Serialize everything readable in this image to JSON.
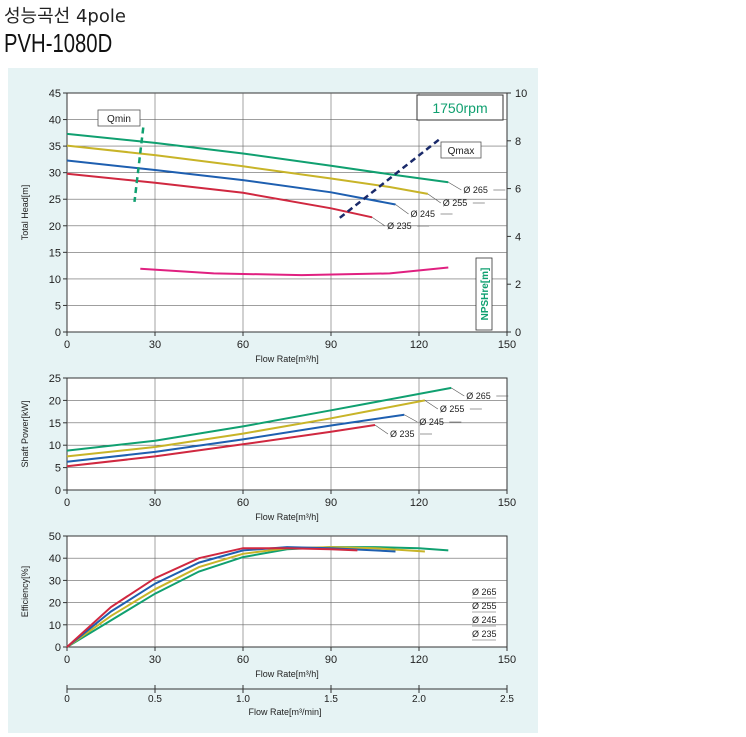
{
  "header": {
    "subtitle": "성능곡선 4pole",
    "model": "PVH-1080D"
  },
  "chart_data": [
    {
      "id": "head",
      "type": "line",
      "ylabel": "Total Head[m]",
      "xlabel": "Flow Rate[m³/h]",
      "xlim": [
        0,
        150
      ],
      "ylim": [
        0,
        45
      ],
      "xticks": [
        0,
        30,
        60,
        90,
        120,
        150
      ],
      "yticks": [
        0,
        5,
        10,
        15,
        20,
        25,
        30,
        35,
        40,
        45
      ],
      "y2label": "NPSHre[m]",
      "y2lim": [
        0,
        10
      ],
      "y2ticks": [
        0,
        2,
        4,
        6,
        8,
        10
      ],
      "rpm_label": "1750rpm",
      "qmin_label": "Qmin",
      "qmax_label": "Qmax",
      "series": [
        {
          "name": "Ø 265",
          "color": "#10a070",
          "x": [
            0,
            30,
            60,
            90,
            110,
            130
          ],
          "y": [
            37.3,
            35.6,
            33.6,
            31.3,
            29.7,
            28.2
          ]
        },
        {
          "name": "Ø 255",
          "color": "#c8b428",
          "x": [
            0,
            30,
            60,
            90,
            110,
            123
          ],
          "y": [
            35.1,
            33.3,
            31.2,
            28.9,
            27.3,
            26.0
          ]
        },
        {
          "name": "Ø 245",
          "color": "#1e5fb0",
          "x": [
            0,
            30,
            60,
            90,
            112
          ],
          "y": [
            32.3,
            30.5,
            28.6,
            26.3,
            24.0
          ]
        },
        {
          "name": "Ø 235",
          "color": "#d02840",
          "x": [
            0,
            30,
            60,
            90,
            104
          ],
          "y": [
            29.8,
            28.1,
            26.2,
            23.3,
            21.6
          ]
        }
      ],
      "npsh": {
        "name": "NPSHre",
        "color": "#e02080",
        "x": [
          25,
          50,
          80,
          110,
          130
        ],
        "y": [
          2.65,
          2.45,
          2.38,
          2.45,
          2.7
        ]
      },
      "qmin_line": {
        "color": "#10a070",
        "x": [
          26,
          23
        ],
        "y": [
          38.5,
          24.5
        ]
      },
      "qmax_line": {
        "color": "#1a2a6a",
        "x": [
          93,
          127
        ],
        "y": [
          21.5,
          36.3
        ]
      }
    },
    {
      "id": "power",
      "type": "line",
      "ylabel": "Shaft Power[kW]",
      "xlabel": "Flow Rate[m³/h]",
      "xlim": [
        0,
        150
      ],
      "ylim": [
        0,
        25
      ],
      "xticks": [
        0,
        30,
        60,
        90,
        120,
        150
      ],
      "yticks": [
        0,
        5,
        10,
        15,
        20,
        25
      ],
      "series": [
        {
          "name": "Ø 265",
          "color": "#10a070",
          "x": [
            0,
            30,
            60,
            90,
            131
          ],
          "y": [
            8.8,
            11.0,
            14.2,
            17.8,
            22.8
          ]
        },
        {
          "name": "Ø 255",
          "color": "#c8b428",
          "x": [
            0,
            30,
            60,
            90,
            122
          ],
          "y": [
            7.5,
            9.6,
            12.6,
            16.0,
            20.0
          ]
        },
        {
          "name": "Ø 245",
          "color": "#1e5fb0",
          "x": [
            0,
            30,
            60,
            90,
            115
          ],
          "y": [
            6.3,
            8.5,
            11.3,
            14.4,
            16.8
          ]
        },
        {
          "name": "Ø 235",
          "color": "#d02840",
          "x": [
            0,
            30,
            60,
            90,
            105
          ],
          "y": [
            5.3,
            7.5,
            10.2,
            13.0,
            14.5
          ]
        }
      ]
    },
    {
      "id": "efficiency",
      "type": "line",
      "ylabel": "Efficiency[%]",
      "xlabel": "Flow Rate[m³/h]",
      "xlim": [
        0,
        150
      ],
      "ylim": [
        0,
        50
      ],
      "xticks": [
        0,
        30,
        60,
        90,
        120,
        150
      ],
      "yticks": [
        0,
        10,
        20,
        30,
        40,
        50
      ],
      "x2label": "Flow Rate[m³/min]",
      "x2lim": [
        0,
        2.5
      ],
      "x2ticks": [
        "0",
        "0.5",
        "1.0",
        "1.5",
        "2.0",
        "2.5"
      ],
      "series": [
        {
          "name": "Ø 265",
          "color": "#10a070",
          "x": [
            0,
            15,
            30,
            45,
            60,
            75,
            90,
            105,
            120,
            130
          ],
          "y": [
            0,
            12,
            24,
            34,
            40.5,
            44,
            45,
            45,
            44.5,
            43.5
          ]
        },
        {
          "name": "Ø 255",
          "color": "#c8b428",
          "x": [
            0,
            15,
            30,
            45,
            60,
            75,
            90,
            105,
            122
          ],
          "y": [
            0,
            14,
            26,
            36,
            42,
            44.5,
            45,
            44.5,
            43
          ]
        },
        {
          "name": "Ø 245",
          "color": "#1e5fb0",
          "x": [
            0,
            15,
            30,
            45,
            60,
            75,
            90,
            112
          ],
          "y": [
            0,
            16,
            28.5,
            38,
            43.5,
            45,
            44.5,
            43
          ]
        },
        {
          "name": "Ø 235",
          "color": "#d02840",
          "x": [
            0,
            15,
            30,
            45,
            60,
            75,
            90,
            99
          ],
          "y": [
            0,
            18,
            31,
            40,
            44.5,
            44.5,
            44,
            43.5
          ]
        }
      ]
    }
  ]
}
